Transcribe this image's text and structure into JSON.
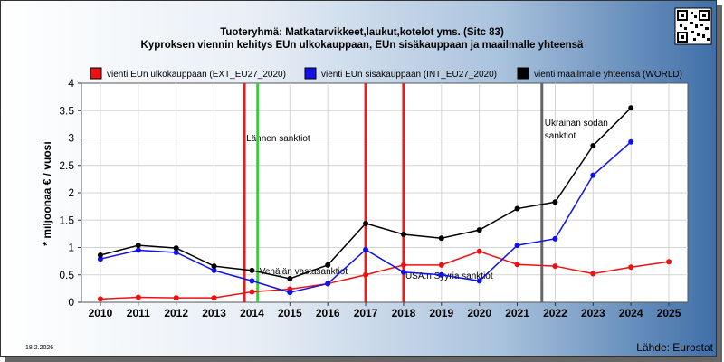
{
  "chart_data": {
    "type": "line",
    "title": "Tuoteryhmä: Matkatarvikkeet,laukut,kotelot yms. (Sitc 83)",
    "subtitle": "Kyproksen viennin kehitys EUn ulkokauppaan, EUn sisäkauppaan ja maailmalle yhteensä",
    "ylabel": "* miljoonaa € / vuosi",
    "xlabel": "",
    "x": [
      "2010",
      "2011",
      "2012",
      "2013",
      "2014",
      "2015",
      "2016",
      "2017",
      "2018",
      "2019",
      "2020",
      "2021",
      "2022",
      "2023",
      "2024",
      "2025"
    ],
    "ylim": [
      0,
      4
    ],
    "yticks": [
      "0",
      "0.5",
      "1",
      "1.5",
      "2",
      "2.5",
      "3",
      "3.5",
      "4"
    ],
    "grid": true,
    "legend_position": "top",
    "series": [
      {
        "name": "vienti EUn ulkokauppaan (EXT_EU27_2020)",
        "color": "#ee1111",
        "values": [
          0.06,
          0.09,
          0.08,
          0.08,
          0.19,
          0.24,
          0.34,
          0.5,
          0.68,
          0.68,
          0.93,
          0.69,
          0.66,
          0.52,
          0.64,
          0.74
        ]
      },
      {
        "name": "vienti EUn sisäkauppaan (INT_EU27_2020)",
        "color": "#1111ee",
        "values": [
          0.79,
          0.95,
          0.91,
          0.58,
          0.39,
          0.18,
          0.34,
          0.96,
          0.55,
          0.5,
          0.39,
          1.04,
          1.16,
          2.32,
          2.93,
          null
        ]
      },
      {
        "name": "vienti maailmalle yhteensä (WORLD)",
        "color": "#000000",
        "values": [
          0.86,
          1.04,
          0.99,
          0.66,
          0.58,
          0.43,
          0.68,
          1.44,
          1.24,
          1.17,
          1.32,
          1.71,
          1.83,
          2.86,
          3.55,
          null
        ]
      }
    ],
    "events": [
      {
        "label": "Lännen sanktiot",
        "x": 2013.8,
        "color": "#dd2222"
      },
      {
        "label": "",
        "x": 2014.15,
        "color": "#22dd22"
      },
      {
        "label": "Venäjän vastasanktiot",
        "x": 2014.15,
        "color": "#22dd22"
      },
      {
        "label": "",
        "x": 2017.0,
        "color": "#dd2222"
      },
      {
        "label": "USA:n Syyria sanktiot",
        "x": 2018.0,
        "color": "#dd2222"
      },
      {
        "label": "Ukrainan sodan sanktiot",
        "x": 2021.65,
        "color": "#666666"
      }
    ],
    "footer_left": "18.2.2026",
    "footer_right": "Lähde: Eurostat"
  }
}
